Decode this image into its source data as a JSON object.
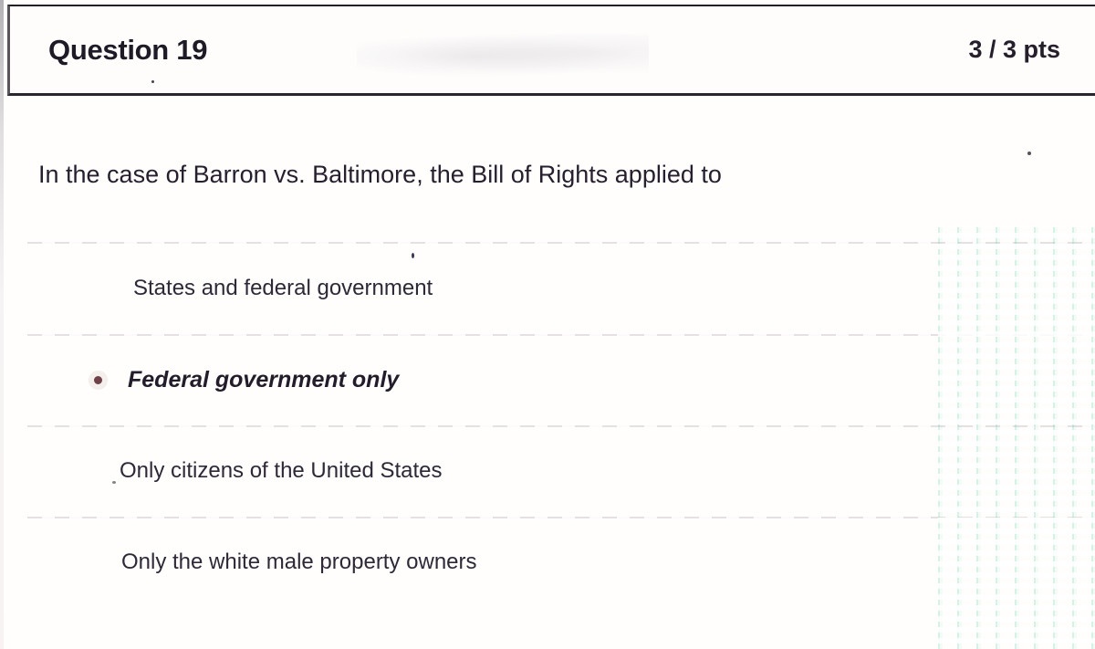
{
  "header": {
    "title": "Question 19",
    "points": "3 / 3 pts"
  },
  "question": {
    "text": "In the case of Barron vs. Baltimore, the Bill of Rights applied to"
  },
  "options": [
    {
      "label": "States and federal government",
      "selected": false
    },
    {
      "label": "Federal government only",
      "selected": true
    },
    {
      "label": "Only citizens of the United States",
      "selected": false
    },
    {
      "label": "Only the white male property owners",
      "selected": false
    }
  ],
  "colors": {
    "header_border": "#2a2630",
    "text": "#261f2e",
    "selected_bullet": "#6d4146",
    "divider": "#96848e",
    "scan_artifact_teal": "#46c49e"
  }
}
